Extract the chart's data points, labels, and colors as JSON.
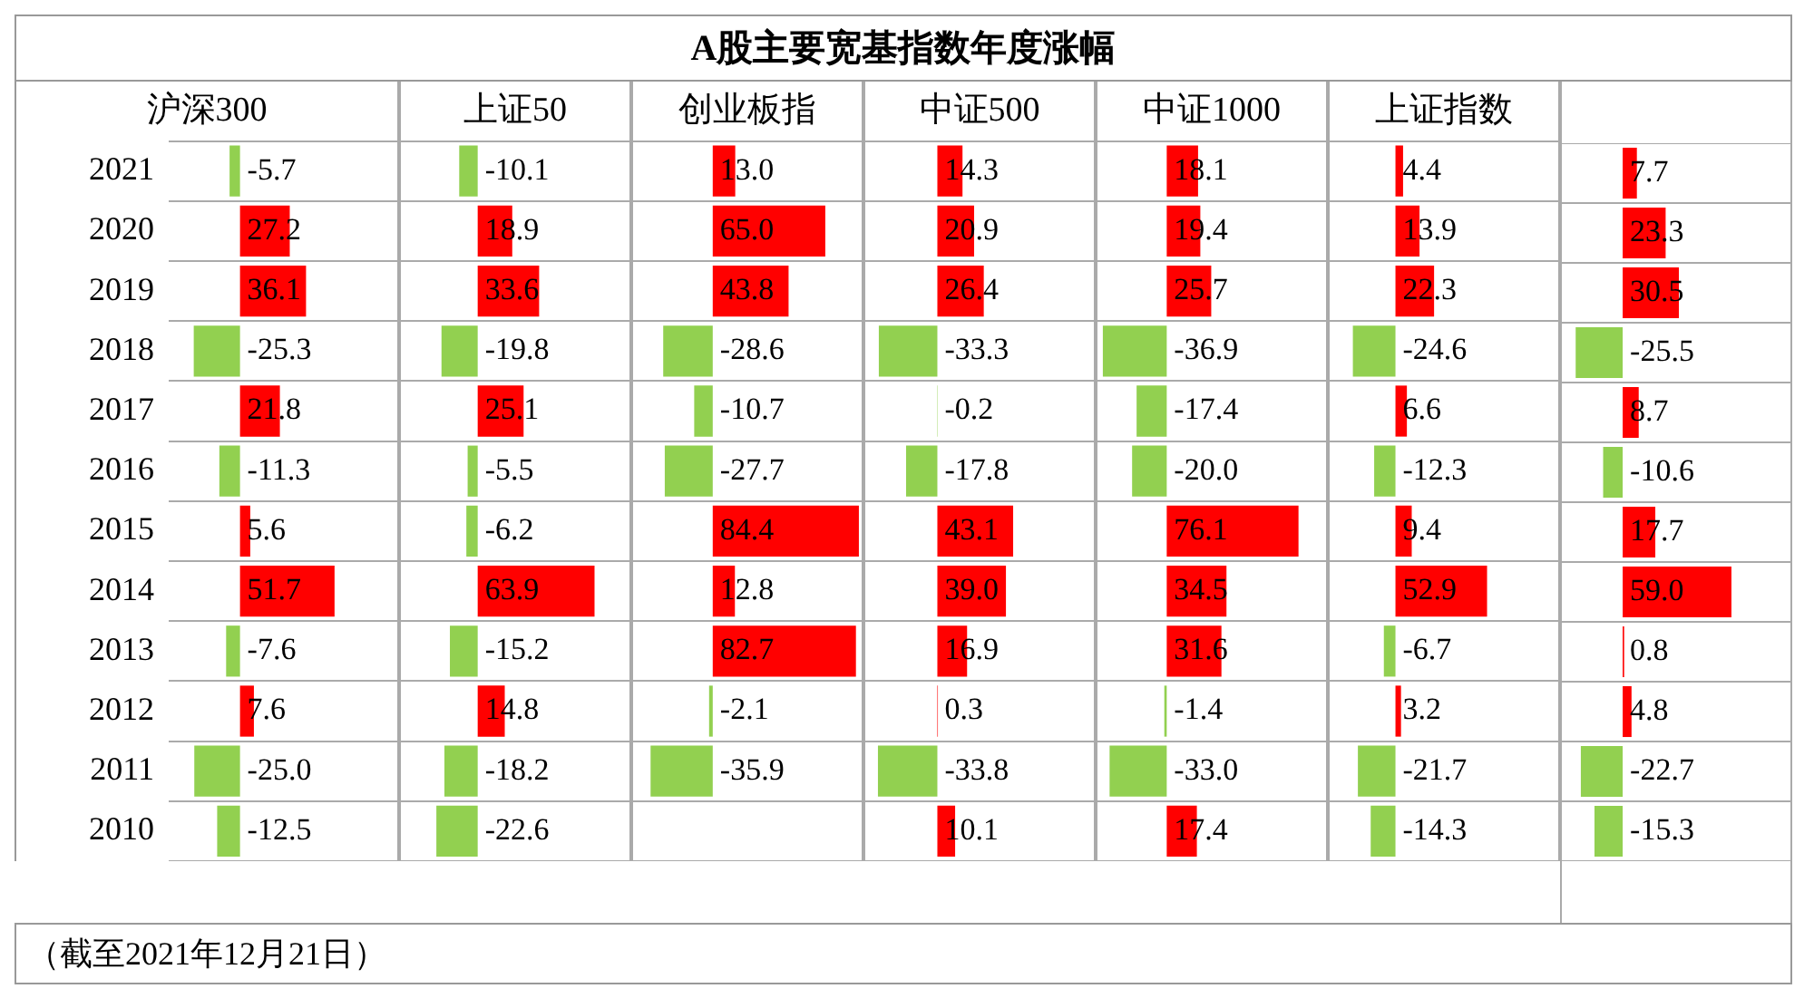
{
  "chart_data": [
    {
      "type": "other",
      "title": "A股主要宽基指数年度涨幅"
    },
    {
      "type": "bar",
      "orientation": "horizontal",
      "title": "沪深300",
      "categories": [
        "2021",
        "2020",
        "2019",
        "2018",
        "2017",
        "2016",
        "2015",
        "2014",
        "2013",
        "2012",
        "2011",
        "2010"
      ],
      "values": [
        -5.7,
        27.2,
        36.1,
        -25.3,
        21.8,
        -11.3,
        5.6,
        51.7,
        -7.6,
        7.6,
        -25.0,
        -12.5
      ],
      "value_labels": [
        "-5.7",
        "27.2",
        "36.1",
        "-25.3",
        "21.8",
        "-11.3",
        "5.6",
        "51.7",
        "-7.6",
        "7.6",
        "-25.0",
        "-12.5"
      ],
      "colors": [
        "#92d050",
        "#ff0000",
        "#ff0000",
        "#92d050",
        "#ff0000",
        "#92d050",
        "#ff0000",
        "#ff0000",
        "#92d050",
        "#ff0000",
        "#92d050",
        "#92d050"
      ],
      "xlim": [
        -39,
        86
      ],
      "tick_labels": "y",
      "grid": "y"
    },
    {
      "type": "bar",
      "orientation": "horizontal",
      "title": "上证50",
      "categories": [
        "2021",
        "2020",
        "2019",
        "2018",
        "2017",
        "2016",
        "2015",
        "2014",
        "2013",
        "2012",
        "2011",
        "2010"
      ],
      "values": [
        -10.1,
        18.9,
        33.6,
        -19.8,
        25.1,
        -5.5,
        -6.2,
        63.9,
        -15.2,
        14.8,
        -18.2,
        -22.6
      ],
      "value_labels": [
        "-10.1",
        "18.9",
        "33.6",
        "-19.8",
        "25.1",
        "-5.5",
        "-6.2",
        "63.9",
        "-15.2",
        "14.8",
        "-18.2",
        "-22.6"
      ],
      "colors": [
        "#92d050",
        "#ff0000",
        "#ff0000",
        "#92d050",
        "#ff0000",
        "#92d050",
        "#92d050",
        "#ff0000",
        "#92d050",
        "#ff0000",
        "#92d050",
        "#92d050"
      ],
      "xlim": [
        -42,
        83
      ],
      "tick_labels": false,
      "grid": "y"
    },
    {
      "type": "bar",
      "orientation": "horizontal",
      "title": "创业板指",
      "categories": [
        "2021",
        "2020",
        "2019",
        "2018",
        "2017",
        "2016",
        "2015",
        "2014",
        "2013",
        "2012",
        "2011",
        "2010"
      ],
      "values": [
        13.0,
        65.0,
        43.8,
        -28.6,
        -10.7,
        -27.7,
        84.4,
        12.8,
        82.7,
        -2.1,
        -35.9,
        null
      ],
      "value_labels": [
        "13.0",
        "65.0",
        "43.8",
        "-28.6",
        "-10.7",
        "-27.7",
        "84.4",
        "12.8",
        "82.7",
        "-2.1",
        "-35.9",
        null
      ],
      "colors": [
        "#ff0000",
        "#ff0000",
        "#ff0000",
        "#92d050",
        "#92d050",
        "#92d050",
        "#ff0000",
        "#ff0000",
        "#ff0000",
        "#92d050",
        "#92d050",
        null
      ],
      "xlim": [
        -46,
        86
      ],
      "tick_labels": false,
      "grid": "y"
    },
    {
      "type": "bar",
      "orientation": "horizontal",
      "title": "中证500",
      "categories": [
        "2021",
        "2020",
        "2019",
        "2018",
        "2017",
        "2016",
        "2015",
        "2014",
        "2013",
        "2012",
        "2011",
        "2010"
      ],
      "values": [
        14.3,
        20.9,
        26.4,
        -33.3,
        -0.2,
        -17.8,
        43.1,
        39.0,
        16.9,
        0.3,
        -33.8,
        10.1
      ],
      "value_labels": [
        "14.3",
        "20.9",
        "26.4",
        "-33.3",
        "-0.2",
        "-17.8",
        "43.1",
        "39.0",
        "16.9",
        "0.3",
        "-33.8",
        "10.1"
      ],
      "colors": [
        "#ff0000",
        "#ff0000",
        "#ff0000",
        "#92d050",
        "#92d050",
        "#92d050",
        "#ff0000",
        "#ff0000",
        "#ff0000",
        "#ff0000",
        "#92d050",
        "#ff0000"
      ],
      "xlim": [
        -41,
        89
      ],
      "tick_labels": false,
      "grid": "y"
    },
    {
      "type": "bar",
      "orientation": "horizontal",
      "title": "中证1000",
      "categories": [
        "2021",
        "2020",
        "2019",
        "2018",
        "2017",
        "2016",
        "2015",
        "2014",
        "2013",
        "2012",
        "2011",
        "2010"
      ],
      "values": [
        18.1,
        19.4,
        25.7,
        -36.9,
        -17.4,
        -20.0,
        76.1,
        34.5,
        31.6,
        -1.4,
        -33.0,
        17.4
      ],
      "value_labels": [
        "18.1",
        "19.4",
        "25.7",
        "-36.9",
        "-17.4",
        "-20.0",
        "76.1",
        "34.5",
        "31.6",
        "-1.4",
        "-33.0",
        "17.4"
      ],
      "colors": [
        "#ff0000",
        "#ff0000",
        "#ff0000",
        "#92d050",
        "#92d050",
        "#92d050",
        "#ff0000",
        "#ff0000",
        "#ff0000",
        "#92d050",
        "#92d050",
        "#ff0000"
      ],
      "xlim": [
        -40,
        92
      ],
      "tick_labels": false,
      "grid": "y"
    },
    {
      "type": "bar",
      "orientation": "horizontal",
      "title": "上证指数",
      "categories": [
        "2021",
        "2020",
        "2019",
        "2018",
        "2017",
        "2016",
        "2015",
        "2014",
        "2013",
        "2012",
        "2011",
        "2010"
      ],
      "values": [
        4.4,
        13.9,
        22.3,
        -24.6,
        6.6,
        -12.3,
        9.4,
        52.9,
        -6.7,
        3.2,
        -21.7,
        -14.3
      ],
      "value_labels": [
        "4.4",
        "13.9",
        "22.3",
        "-24.6",
        "6.6",
        "-12.3",
        "9.4",
        "52.9",
        "-6.7",
        "3.2",
        "-21.7",
        "-14.3"
      ],
      "colors": [
        "#ff0000",
        "#ff0000",
        "#ff0000",
        "#92d050",
        "#ff0000",
        "#92d050",
        "#ff0000",
        "#ff0000",
        "#92d050",
        "#ff0000",
        "#92d050",
        "#92d050"
      ],
      "xlim": [
        -38,
        94
      ],
      "tick_labels": false,
      "grid": "y"
    },
    {
      "type": "bar",
      "orientation": "horizontal",
      "categories": [
        "2021",
        "2020",
        "2019",
        "2018",
        "2017",
        "2016",
        "2015",
        "2014",
        "2013",
        "2012",
        "2011",
        "2010"
      ],
      "values": [
        7.7,
        23.3,
        30.5,
        -25.5,
        8.7,
        -10.6,
        17.7,
        59.0,
        0.8,
        4.8,
        -22.7,
        -15.3
      ],
      "value_labels": [
        "7.7",
        "23.3",
        "30.5",
        "-25.5",
        "8.7",
        "-10.6",
        "17.7",
        "59.0",
        "0.8",
        "4.8",
        "-22.7",
        "-15.3"
      ],
      "colors": [
        "#ff0000",
        "#ff0000",
        "#ff0000",
        "#92d050",
        "#ff0000",
        "#92d050",
        "#ff0000",
        "#ff0000",
        "#ff0000",
        "#ff0000",
        "#92d050",
        "#92d050"
      ],
      "xlim": [
        -33,
        91
      ],
      "tick_labels": false,
      "grid": "y"
    },
    {
      "type": "other",
      "annotations": [
        "（截至2021年12月21日）"
      ]
    }
  ]
}
